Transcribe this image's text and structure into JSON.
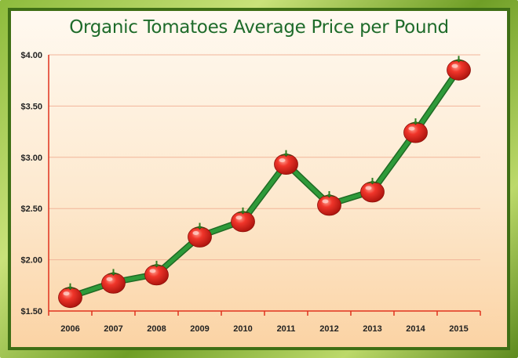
{
  "chart_data": {
    "type": "line",
    "title": "Organic Tomatoes Average Price per Pound",
    "xlabel": "",
    "ylabel": "",
    "categories": [
      "2006",
      "2007",
      "2008",
      "2009",
      "2010",
      "2011",
      "2012",
      "2013",
      "2014",
      "2015"
    ],
    "values": [
      1.64,
      1.78,
      1.86,
      2.23,
      2.38,
      2.94,
      2.54,
      2.67,
      3.25,
      3.86
    ],
    "ylim": [
      1.5,
      4.0
    ],
    "yticks": [
      "$1.50",
      "$2.00",
      "$2.50",
      "$3.00",
      "$3.50",
      "$4.00"
    ],
    "grid": true,
    "marker": "tomato",
    "colors": {
      "line": "#2e9a3a",
      "line_dark": "#1f6b24",
      "grid": "#f2b59a",
      "axis": "#e0321e",
      "marker": "#e3261a",
      "title": "#1e6b2a"
    }
  }
}
